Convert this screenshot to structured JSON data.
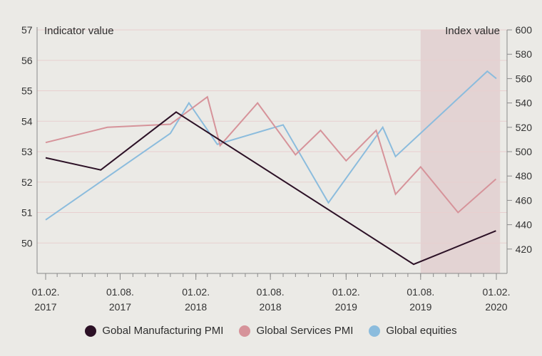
{
  "chart_data": {
    "type": "line",
    "left_axis_label": "Indicator value",
    "right_axis_label": "Index value",
    "left_ticks": [
      50,
      51,
      52,
      53,
      54,
      55,
      56,
      57
    ],
    "right_ticks": [
      420,
      440,
      460,
      480,
      500,
      520,
      540,
      560,
      580,
      600
    ],
    "left_range": [
      49,
      57
    ],
    "right_range": [
      400,
      600
    ],
    "x_ticks": [
      {
        "date": "2017-02-01",
        "line1": "01.02.",
        "line2": "2017"
      },
      {
        "date": "2017-08-01",
        "line1": "01.08.",
        "line2": "2017"
      },
      {
        "date": "2018-02-01",
        "line1": "01.02.",
        "line2": "2018"
      },
      {
        "date": "2018-08-01",
        "line1": "01.08.",
        "line2": "2018"
      },
      {
        "date": "2019-02-01",
        "line1": "01.02.",
        "line2": "2019"
      },
      {
        "date": "2019-08-01",
        "line1": "01.08.",
        "line2": "2019"
      },
      {
        "date": "2020-02-01",
        "line1": "01.02.",
        "line2": "2020"
      }
    ],
    "shaded_region": {
      "start": "2019-08-01",
      "end": "2020-02-10",
      "color": "#e3d3d3"
    },
    "series": [
      {
        "name": "Gobal Manufacturing PMI",
        "axis": "left",
        "color": "#2c1126",
        "points": [
          {
            "x": "2017-02-01",
            "y": 52.8
          },
          {
            "x": "2017-06-15",
            "y": 52.4
          },
          {
            "x": "2017-12-15",
            "y": 54.3
          },
          {
            "x": "2019-07-15",
            "y": 49.3
          },
          {
            "x": "2020-01-31",
            "y": 50.4
          }
        ]
      },
      {
        "name": "Global Services PMI",
        "axis": "left",
        "color": "#d6939a",
        "points": [
          {
            "x": "2017-02-01",
            "y": 53.3
          },
          {
            "x": "2017-07-01",
            "y": 53.8
          },
          {
            "x": "2017-12-01",
            "y": 53.9
          },
          {
            "x": "2018-03-01",
            "y": 54.8
          },
          {
            "x": "2018-04-01",
            "y": 53.2
          },
          {
            "x": "2018-07-01",
            "y": 54.6
          },
          {
            "x": "2018-10-01",
            "y": 52.9
          },
          {
            "x": "2018-12-01",
            "y": 53.7
          },
          {
            "x": "2019-02-01",
            "y": 52.7
          },
          {
            "x": "2019-04-15",
            "y": 53.7
          },
          {
            "x": "2019-06-01",
            "y": 51.6
          },
          {
            "x": "2019-08-01",
            "y": 52.5
          },
          {
            "x": "2019-10-31",
            "y": 51.0
          },
          {
            "x": "2020-01-31",
            "y": 52.1
          }
        ]
      },
      {
        "name": "Global equities",
        "axis": "right",
        "color": "#8bbcdd",
        "points": [
          {
            "x": "2017-02-01",
            "y": 444
          },
          {
            "x": "2017-12-01",
            "y": 515
          },
          {
            "x": "2018-01-15",
            "y": 540
          },
          {
            "x": "2018-03-25",
            "y": 506
          },
          {
            "x": "2018-09-01",
            "y": 522
          },
          {
            "x": "2018-12-20",
            "y": 458
          },
          {
            "x": "2019-05-01",
            "y": 520
          },
          {
            "x": "2019-06-01",
            "y": 496
          },
          {
            "x": "2020-01-10",
            "y": 566
          },
          {
            "x": "2020-02-01",
            "y": 560
          }
        ]
      }
    ]
  }
}
